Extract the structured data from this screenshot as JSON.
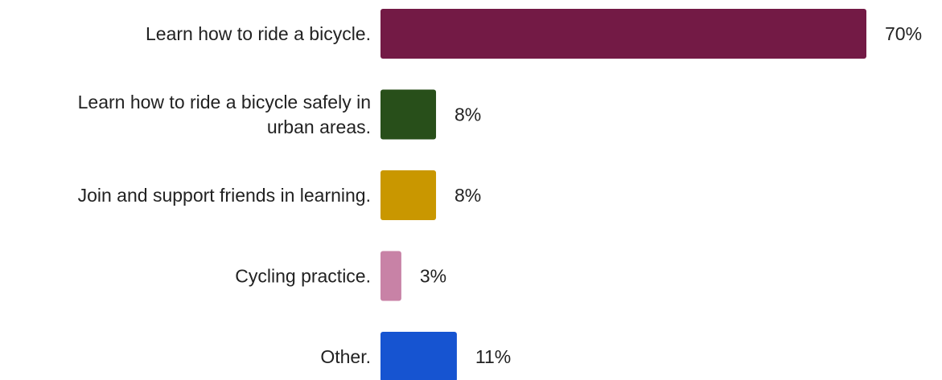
{
  "chart_data": {
    "type": "bar",
    "orientation": "horizontal",
    "categories": [
      [
        "Learn how to ride a bicycle."
      ],
      [
        "Learn how to ride a bicycle safely in",
        "urban areas."
      ],
      [
        "Join and support friends in learning."
      ],
      [
        "Cycling practice."
      ],
      [
        "Other."
      ]
    ],
    "values": [
      70,
      8,
      8,
      3,
      11
    ],
    "value_labels": [
      "70%",
      "8%",
      "8%",
      "3%",
      "11%"
    ],
    "colors": [
      "#731a45",
      "#284f1a",
      "#c99700",
      "#c882a6",
      "#1654d1"
    ],
    "xlim": [
      0,
      70
    ],
    "grid": false,
    "legend": "none"
  }
}
